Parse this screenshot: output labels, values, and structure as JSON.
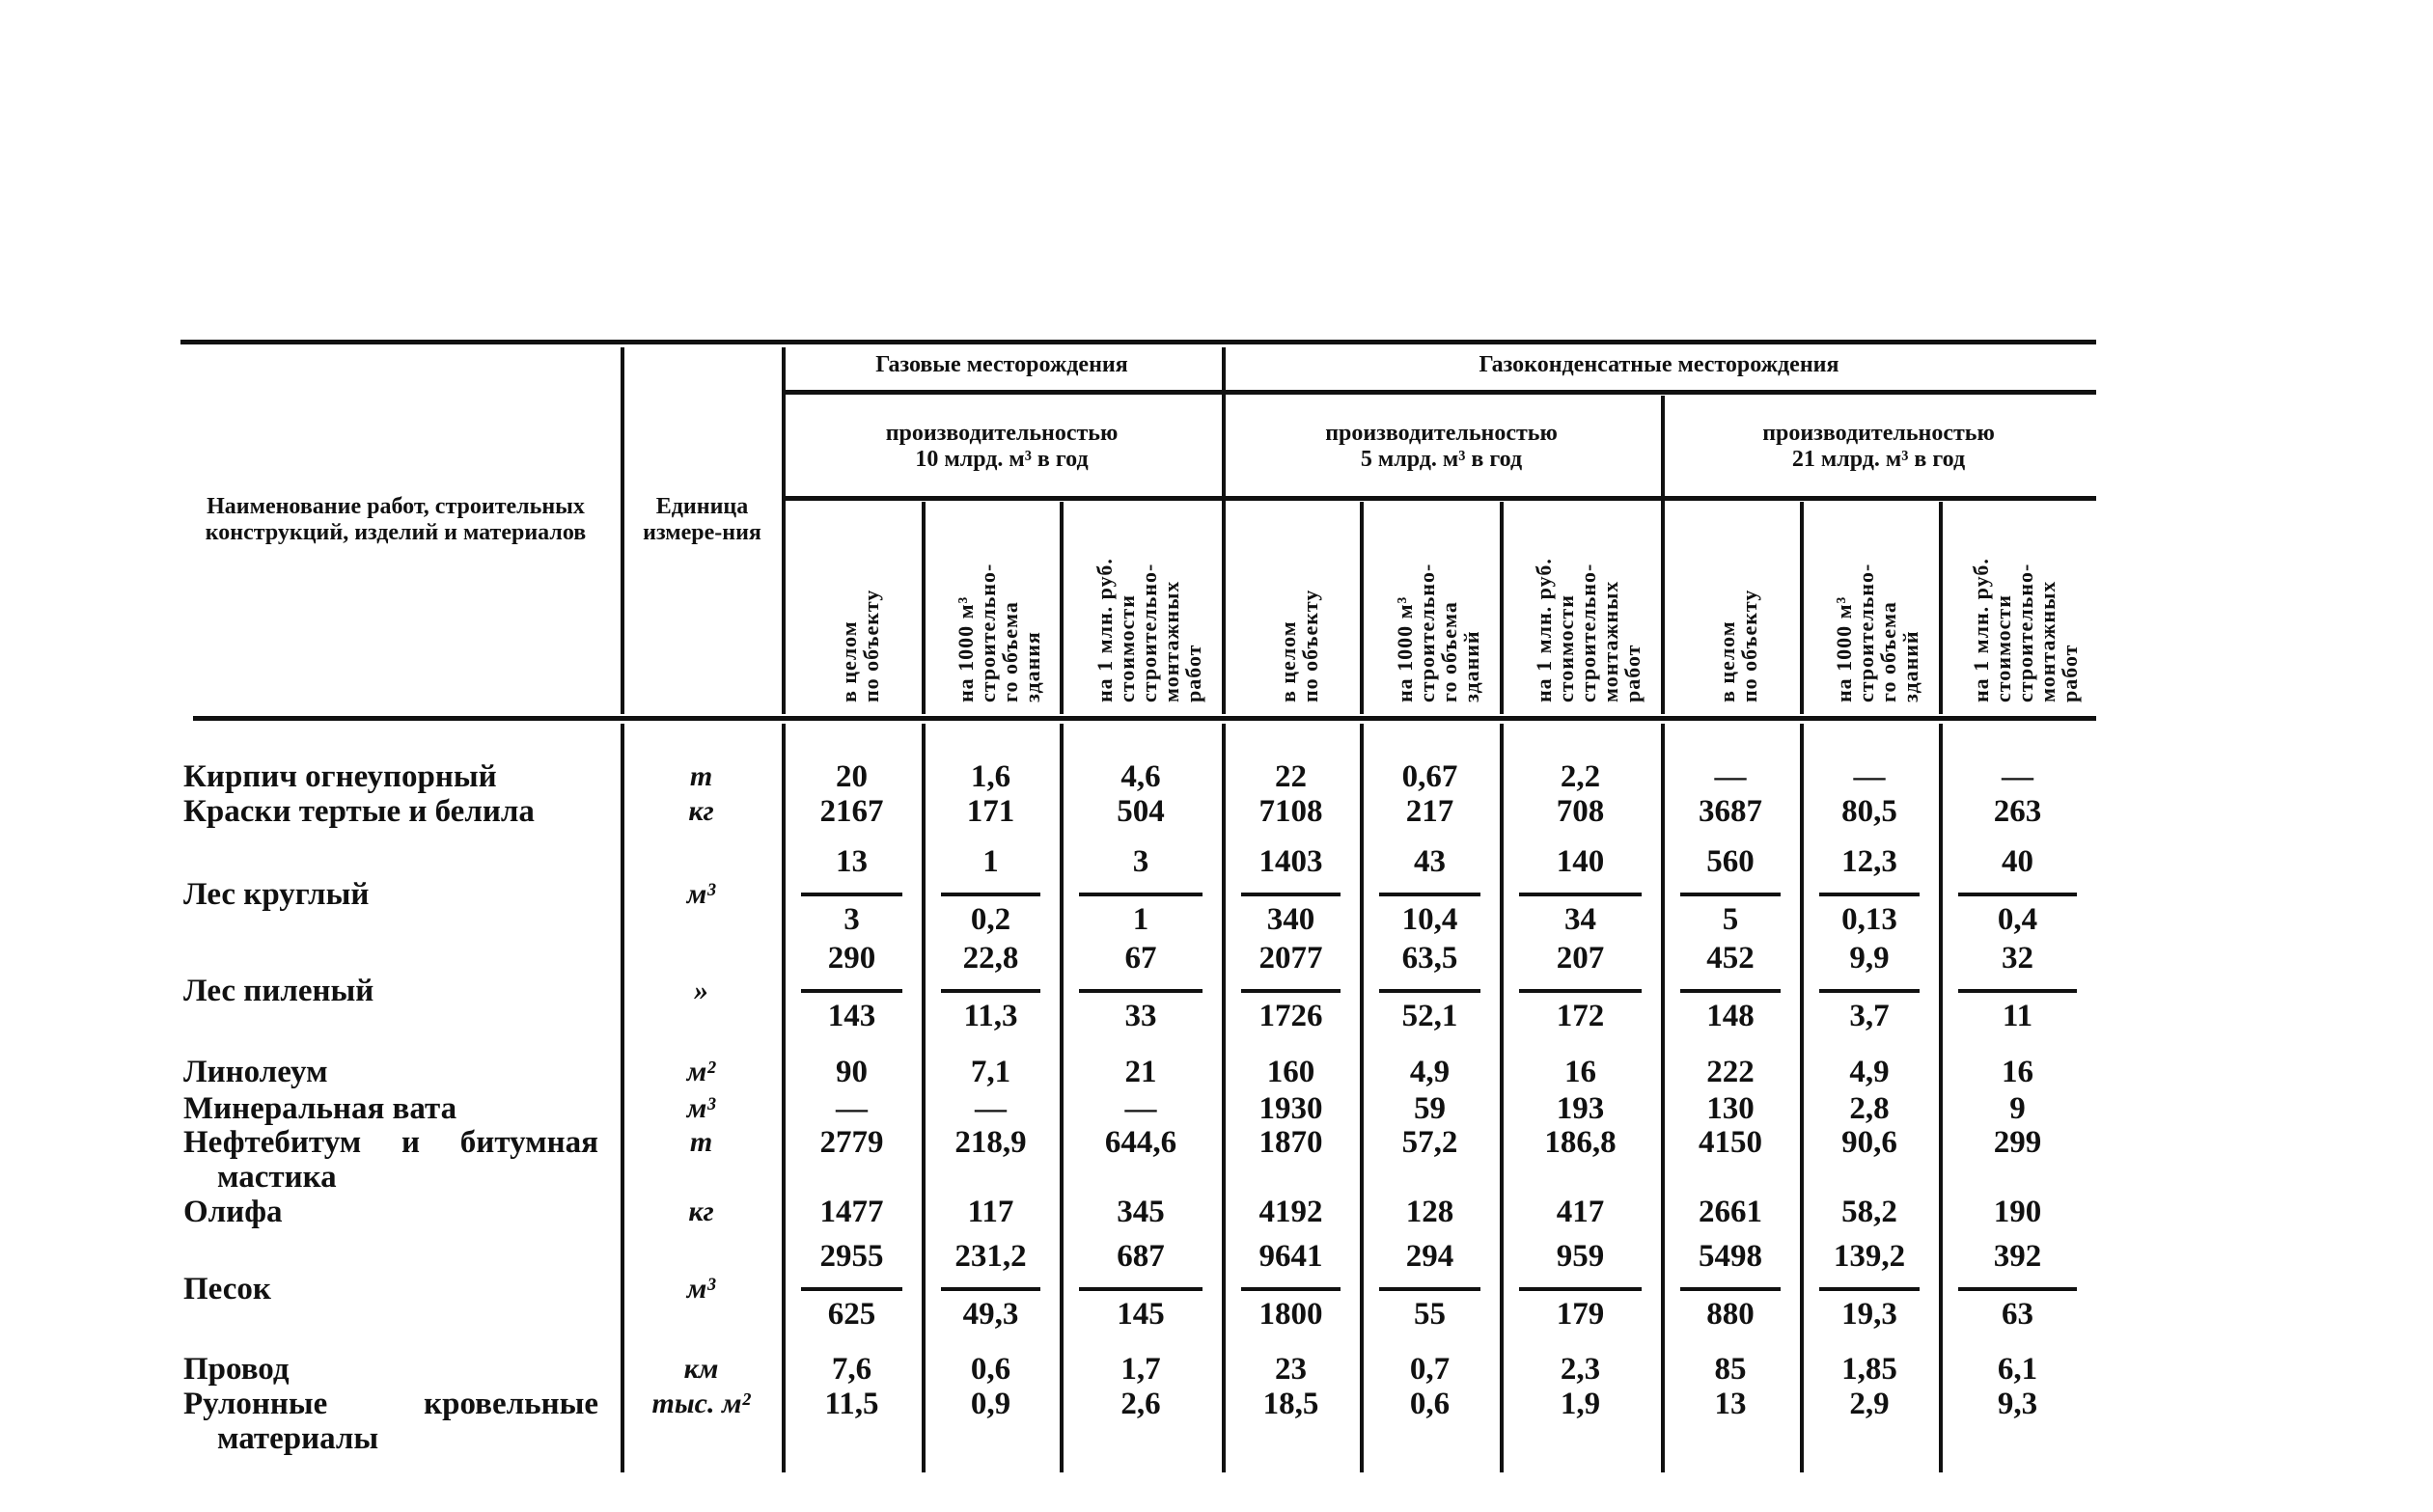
{
  "header": {
    "name_col": "Наименование работ, строительных конструкций, изделий и материалов",
    "unit_col": "Единица измере-ния",
    "groups": [
      {
        "label": "Газовые месторождения"
      },
      {
        "label": "Газоконденсатные месторождения"
      }
    ],
    "subgroups": [
      {
        "line1": "производительностью",
        "line2": "10 млрд. м³ в год"
      },
      {
        "line1": "производительностью",
        "line2": "5 млрд. м³ в год"
      },
      {
        "line1": "производительностью",
        "line2": "21 млрд. м³ в год"
      }
    ],
    "columns": [
      [
        "в целом",
        "по объекту"
      ],
      [
        "на 1000 м³",
        "строительно-",
        "го объема",
        "здания"
      ],
      [
        "на 1 млн. руб.",
        "стоимости",
        "строительно-",
        "монтажных",
        "работ"
      ],
      [
        "в целом",
        "по объекту"
      ],
      [
        "на 1000 м³",
        "строительно-",
        "го объема",
        "зданий"
      ],
      [
        "на 1 млн. руб.",
        "стоимости",
        "строительно-",
        "монтажных",
        "работ"
      ],
      [
        "в целом",
        "по объекту"
      ],
      [
        "на 1000 м³",
        "строительно-",
        "го объема",
        "зданий"
      ],
      [
        "на 1 млн. руб.",
        "стоимости",
        "строительно-",
        "монтажных",
        "работ"
      ]
    ]
  },
  "rows": [
    {
      "name": "Кирпич огнеупорный",
      "unit": "т",
      "values": [
        "20",
        "1,6",
        "4,6",
        "22",
        "0,67",
        "2,2",
        "—",
        "—",
        "—"
      ]
    },
    {
      "name": "Краски тертые и белила",
      "unit": "кг",
      "values": [
        "2167",
        "171",
        "504",
        "7108",
        "217",
        "708",
        "3687",
        "80,5",
        "263"
      ]
    },
    {
      "name": "Лес круглый",
      "unit": "м³",
      "fraction": true,
      "values": [
        [
          "13",
          "3"
        ],
        [
          "1",
          "0,2"
        ],
        [
          "3",
          "1"
        ],
        [
          "1403",
          "340"
        ],
        [
          "43",
          "10,4"
        ],
        [
          "140",
          "34"
        ],
        [
          "560",
          "5"
        ],
        [
          "12,3",
          "0,13"
        ],
        [
          "40",
          "0,4"
        ]
      ]
    },
    {
      "name": "Лес пиленый",
      "unit": "»",
      "fraction": true,
      "values": [
        [
          "290",
          "143"
        ],
        [
          "22,8",
          "11,3"
        ],
        [
          "67",
          "33"
        ],
        [
          "2077",
          "1726"
        ],
        [
          "63,5",
          "52,1"
        ],
        [
          "207",
          "172"
        ],
        [
          "452",
          "148"
        ],
        [
          "9,9",
          "3,7"
        ],
        [
          "32",
          "11"
        ]
      ]
    },
    {
      "name": "Линолеум",
      "unit": "м²",
      "values": [
        "90",
        "7,1",
        "21",
        "160",
        "4,9",
        "16",
        "222",
        "4,9",
        "16"
      ]
    },
    {
      "name": "Минеральная вата",
      "unit": "м³",
      "values": [
        "—",
        "—",
        "—",
        "1930",
        "59",
        "193",
        "130",
        "2,8",
        "9"
      ]
    },
    {
      "name": "Нефтебитум и битумная",
      "name_cont": "мастика",
      "unit": "т",
      "values": [
        "2779",
        "218,9",
        "644,6",
        "1870",
        "57,2",
        "186,8",
        "4150",
        "90,6",
        "299"
      ]
    },
    {
      "name": "Олифа",
      "unit": "кг",
      "values": [
        "1477",
        "117",
        "345",
        "4192",
        "128",
        "417",
        "2661",
        "58,2",
        "190"
      ]
    },
    {
      "name": "Песок",
      "unit": "м³",
      "fraction": true,
      "values": [
        [
          "2955",
          "625"
        ],
        [
          "231,2",
          "49,3"
        ],
        [
          "687",
          "145"
        ],
        [
          "9641",
          "1800"
        ],
        [
          "294",
          "55"
        ],
        [
          "959",
          "179"
        ],
        [
          "5498",
          "880"
        ],
        [
          "139,2",
          "19,3"
        ],
        [
          "392",
          "63"
        ]
      ]
    },
    {
      "name": "Провод",
      "unit": "км",
      "values": [
        "7,6",
        "0,6",
        "1,7",
        "23",
        "0,7",
        "2,3",
        "85",
        "1,85",
        "6,1"
      ]
    },
    {
      "name": "Рулонные кровельные",
      "name_cont": "материалы",
      "unit": "тыс. м²",
      "values": [
        "11,5",
        "0,9",
        "2,6",
        "18,5",
        "0,6",
        "1,9",
        "13",
        "2,9",
        "9,3"
      ]
    }
  ]
}
